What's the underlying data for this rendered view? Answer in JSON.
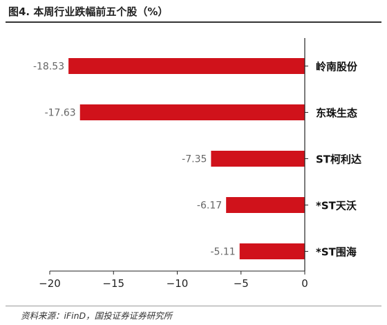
{
  "title": "图4. 本周行业跌幅前五个股（%）",
  "source": "资料来源：iFinD，国投证券证券研究所",
  "chart_data": {
    "type": "bar",
    "orientation": "horizontal",
    "categories": [
      "岭南股份",
      "东珠生态",
      "ST柯利达",
      "*ST天沃",
      "*ST围海"
    ],
    "values": [
      -18.53,
      -17.63,
      -7.35,
      -6.17,
      -5.11
    ],
    "value_labels": [
      "-18.53",
      "-17.63",
      "-7.35",
      "-6.17",
      "-5.11"
    ],
    "xlim": [
      -20,
      0
    ],
    "ticks": [
      -20,
      -15,
      -10,
      -5,
      0
    ],
    "tick_labels": [
      "−20",
      "−15",
      "−10",
      "−5",
      "0"
    ],
    "bar_color": "#d0121b",
    "grid": false,
    "legend": "none"
  }
}
